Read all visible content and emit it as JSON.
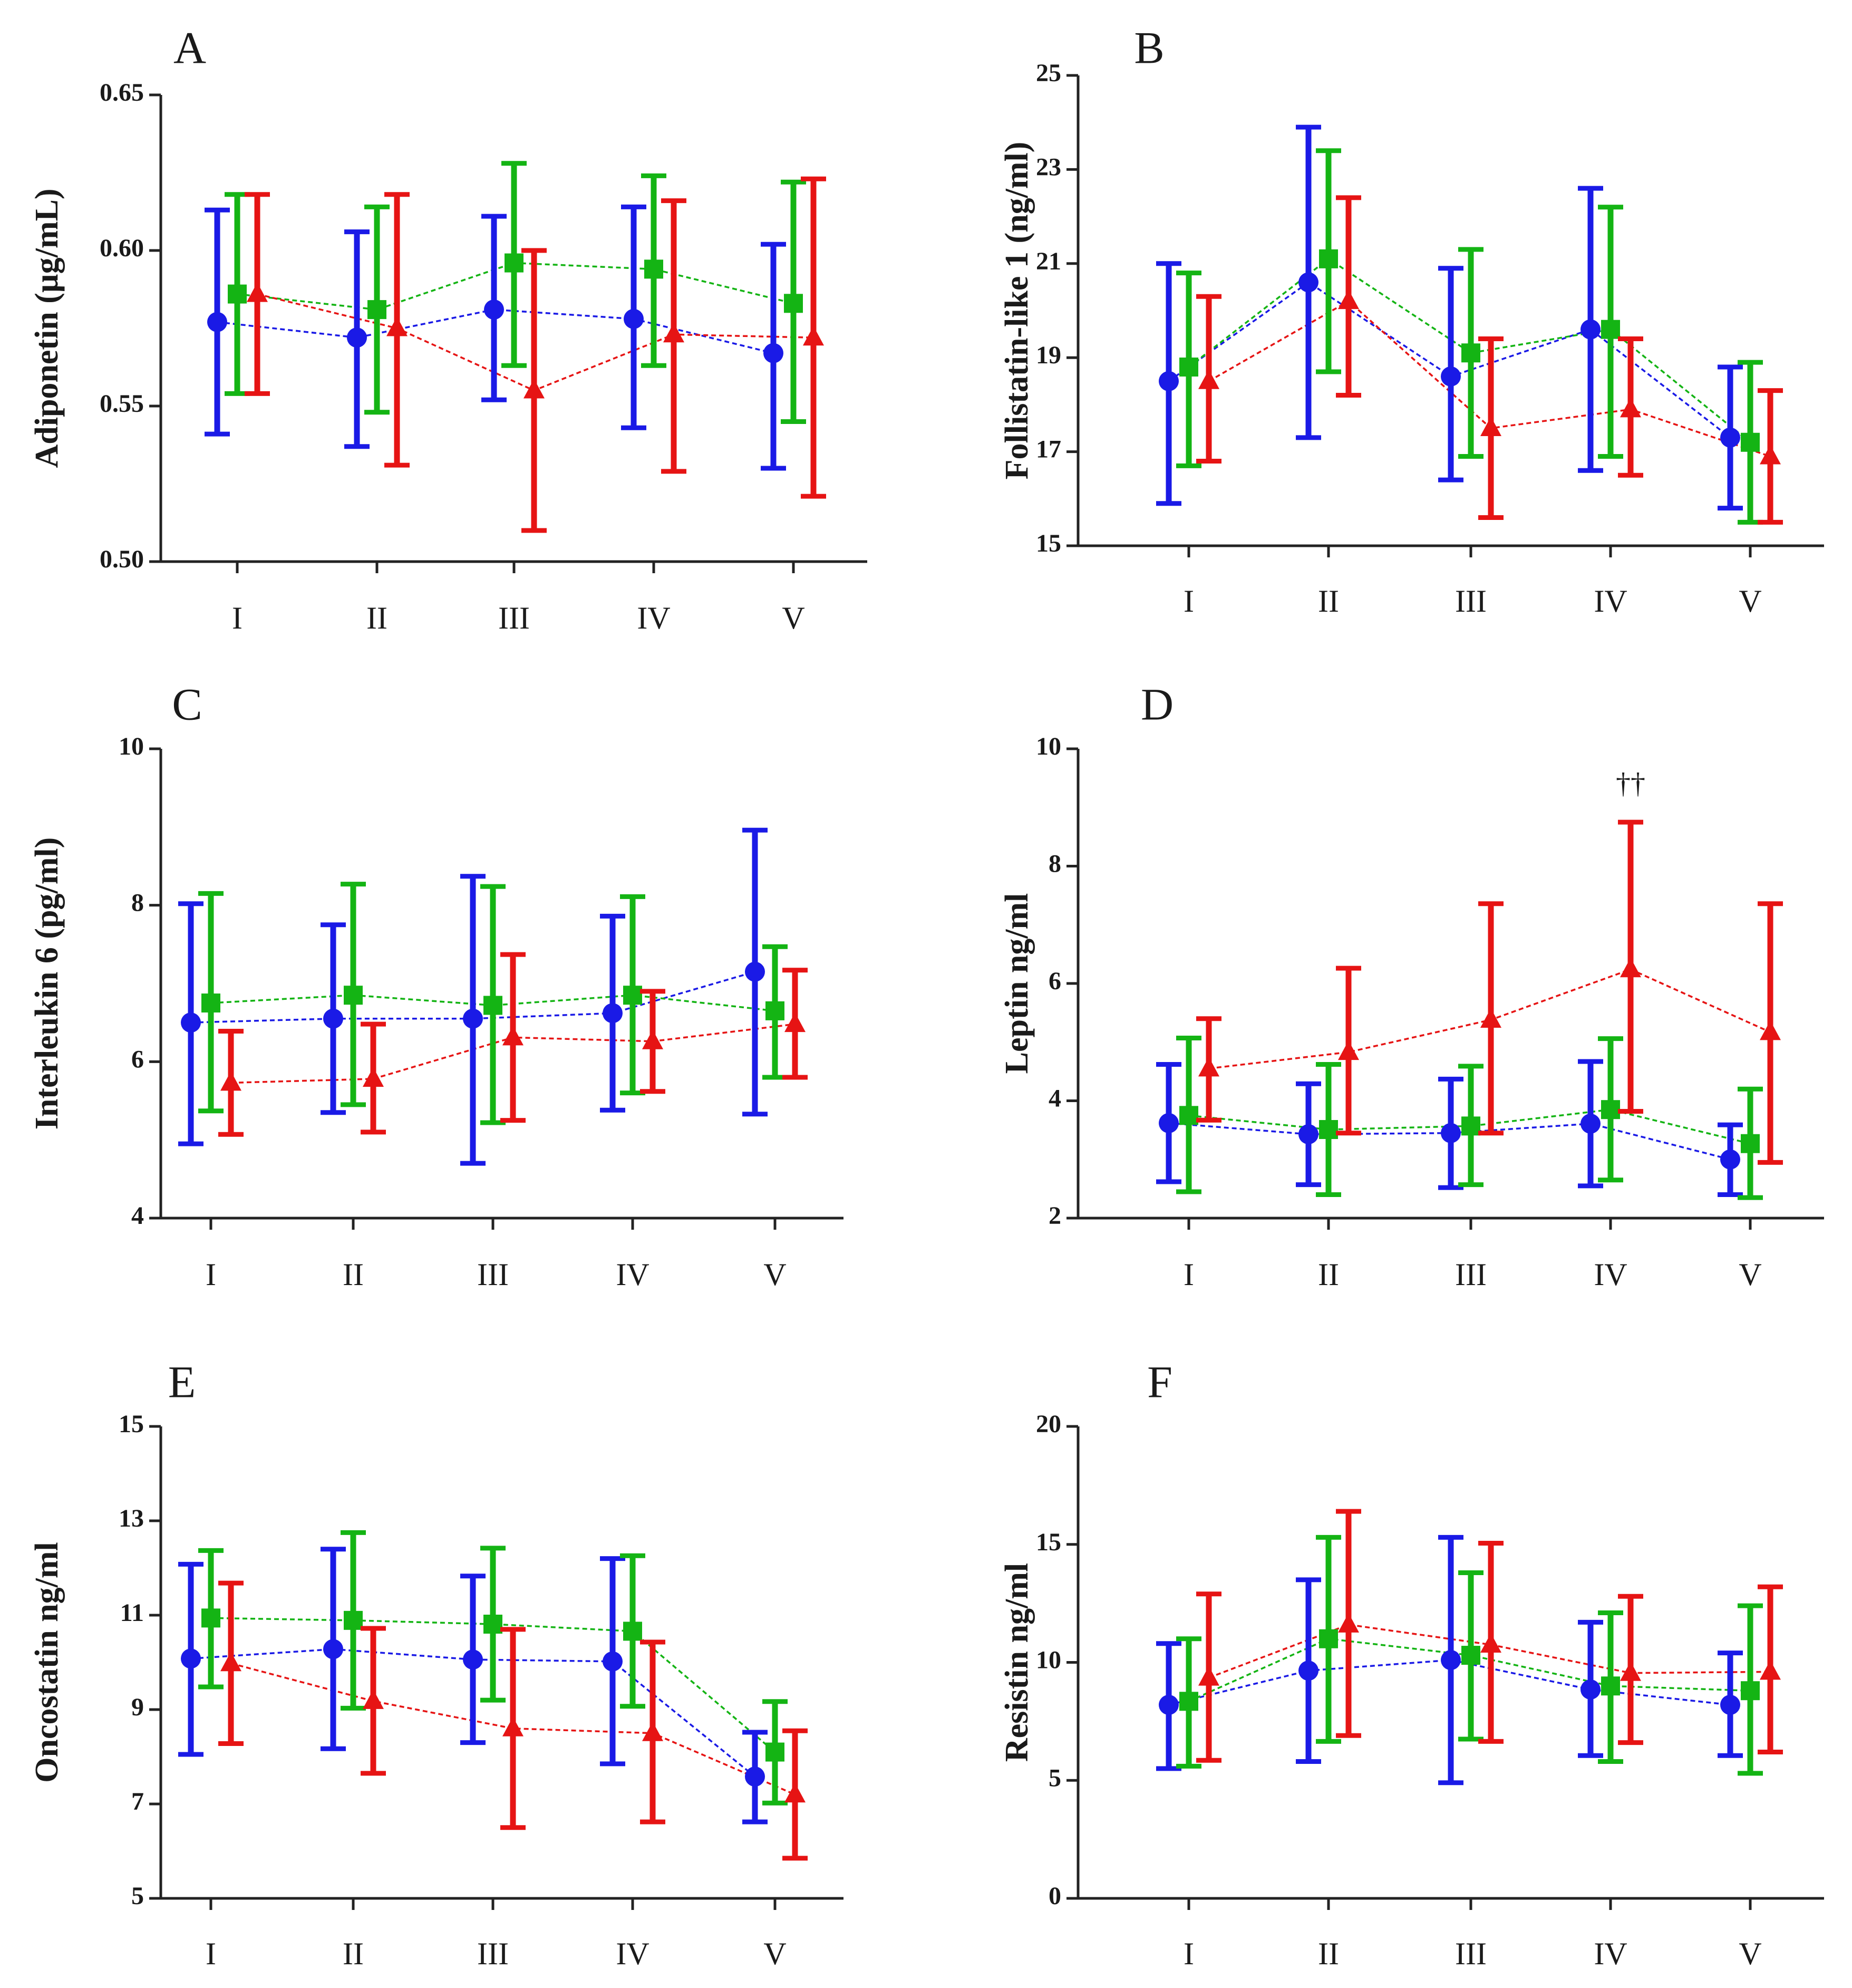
{
  "figure": {
    "series_legend": [
      {
        "name": "blue series",
        "marker": "circle"
      },
      {
        "name": "green series",
        "marker": "square"
      },
      {
        "name": "red series",
        "marker": "triangle"
      }
    ]
  },
  "chart_data": [
    {
      "panel": "A",
      "type": "line",
      "ylabel": "Adiponetin (µg/mL)",
      "categories": [
        "I",
        "II",
        "III",
        "IV",
        "V"
      ],
      "ylim": [
        0.5,
        0.65
      ],
      "yticks": [
        "0.50",
        "0.55",
        "0.60",
        "0.65"
      ],
      "series": [
        {
          "name": "blue",
          "color": "#1a1ae6",
          "marker": "circle",
          "values": [
            0.577,
            0.572,
            0.581,
            0.578,
            0.567
          ],
          "err_low": [
            0.541,
            0.537,
            0.552,
            0.543,
            0.53
          ],
          "err_high": [
            0.613,
            0.606,
            0.611,
            0.614,
            0.602
          ]
        },
        {
          "name": "green",
          "color": "#14b414",
          "marker": "square",
          "values": [
            0.586,
            0.581,
            0.596,
            0.594,
            0.583
          ],
          "err_low": [
            0.554,
            0.548,
            0.563,
            0.563,
            0.545
          ],
          "err_high": [
            0.618,
            0.614,
            0.628,
            0.624,
            0.622
          ]
        },
        {
          "name": "red",
          "color": "#e61414",
          "marker": "triangle",
          "values": [
            0.586,
            0.575,
            0.555,
            0.573,
            0.572
          ],
          "err_low": [
            0.554,
            0.531,
            0.51,
            0.529,
            0.521
          ],
          "err_high": [
            0.618,
            0.618,
            0.6,
            0.616,
            0.623
          ]
        }
      ]
    },
    {
      "panel": "B",
      "type": "line",
      "ylabel": "Follistatin-like 1 (ng/ml)",
      "categories": [
        "I",
        "II",
        "III",
        "IV",
        "V"
      ],
      "ylim": [
        15,
        25
      ],
      "yticks": [
        "15",
        "17",
        "19",
        "21",
        "23",
        "25"
      ],
      "series": [
        {
          "name": "blue",
          "color": "#1a1ae6",
          "marker": "circle",
          "values": [
            18.5,
            20.6,
            18.6,
            19.6,
            17.3
          ],
          "err_low": [
            15.9,
            17.3,
            16.4,
            16.6,
            15.8
          ],
          "err_high": [
            21.0,
            23.9,
            20.9,
            22.6,
            18.8
          ]
        },
        {
          "name": "green",
          "color": "#14b414",
          "marker": "square",
          "values": [
            18.8,
            21.1,
            19.1,
            19.6,
            17.2
          ],
          "err_low": [
            16.7,
            18.7,
            16.9,
            16.9,
            15.5
          ],
          "err_high": [
            20.8,
            23.4,
            21.3,
            22.2,
            18.9
          ]
        },
        {
          "name": "red",
          "color": "#e61414",
          "marker": "triangle",
          "values": [
            18.5,
            20.2,
            17.5,
            17.9,
            16.9
          ],
          "err_low": [
            16.8,
            18.2,
            15.6,
            16.5,
            15.5
          ],
          "err_high": [
            20.3,
            22.4,
            19.4,
            19.4,
            18.3
          ]
        }
      ]
    },
    {
      "panel": "C",
      "type": "line",
      "ylabel": "Interleukin 6 (pg/ml)",
      "categories": [
        "I",
        "II",
        "III",
        "IV",
        "V"
      ],
      "ylim": [
        4,
        10
      ],
      "yticks": [
        "4",
        "6",
        "8",
        "10"
      ],
      "series": [
        {
          "name": "blue",
          "color": "#1a1ae6",
          "marker": "circle",
          "values": [
            6.5,
            6.55,
            6.55,
            6.62,
            7.15
          ],
          "err_low": [
            4.95,
            5.35,
            4.7,
            5.38,
            5.33
          ],
          "err_high": [
            8.02,
            7.75,
            8.37,
            7.86,
            8.96
          ]
        },
        {
          "name": "green",
          "color": "#14b414",
          "marker": "square",
          "values": [
            6.75,
            6.85,
            6.72,
            6.85,
            6.65
          ],
          "err_low": [
            5.37,
            5.45,
            5.22,
            5.6,
            5.8
          ],
          "err_high": [
            8.15,
            8.27,
            8.24,
            8.11,
            7.47
          ]
        },
        {
          "name": "red",
          "color": "#e61414",
          "marker": "triangle",
          "values": [
            5.73,
            5.78,
            6.31,
            6.26,
            6.48
          ],
          "err_low": [
            5.07,
            5.1,
            5.25,
            5.62,
            5.8
          ],
          "err_high": [
            6.39,
            6.48,
            7.37,
            6.9,
            7.17
          ]
        }
      ]
    },
    {
      "panel": "D",
      "type": "line",
      "ylabel": "Leptin ng/ml",
      "categories": [
        "I",
        "II",
        "III",
        "IV",
        "V"
      ],
      "ylim": [
        2,
        10
      ],
      "yticks": [
        "2",
        "4",
        "6",
        "8",
        "10"
      ],
      "annotation": {
        "text": "††",
        "category": "IV",
        "series": "red"
      },
      "series": [
        {
          "name": "blue",
          "color": "#1a1ae6",
          "marker": "circle",
          "values": [
            3.62,
            3.43,
            3.45,
            3.61,
            3.0
          ],
          "err_low": [
            2.62,
            2.57,
            2.52,
            2.55,
            2.4
          ],
          "err_high": [
            4.62,
            4.29,
            4.37,
            4.67,
            3.59
          ]
        },
        {
          "name": "green",
          "color": "#14b414",
          "marker": "square",
          "values": [
            3.75,
            3.51,
            3.57,
            3.85,
            3.27
          ],
          "err_low": [
            2.45,
            2.4,
            2.57,
            2.65,
            2.35
          ],
          "err_high": [
            5.07,
            4.62,
            4.59,
            5.06,
            4.2
          ]
        },
        {
          "name": "red",
          "color": "#e61414",
          "marker": "triangle",
          "values": [
            4.55,
            4.83,
            5.38,
            6.24,
            5.17
          ],
          "err_low": [
            3.67,
            3.45,
            3.45,
            3.82,
            2.95
          ],
          "err_high": [
            5.4,
            6.26,
            7.36,
            8.75,
            7.36
          ]
        }
      ]
    },
    {
      "panel": "E",
      "type": "line",
      "ylabel": "Oncostatin ng/ml",
      "categories": [
        "I",
        "II",
        "III",
        "IV",
        "V"
      ],
      "ylim": [
        5,
        15
      ],
      "yticks": [
        "5",
        "7",
        "9",
        "11",
        "13",
        "15"
      ],
      "series": [
        {
          "name": "blue",
          "color": "#1a1ae6",
          "marker": "circle",
          "values": [
            10.08,
            10.28,
            10.06,
            10.02,
            7.58
          ],
          "err_low": [
            8.05,
            8.17,
            8.3,
            7.85,
            6.62
          ],
          "err_high": [
            12.08,
            12.4,
            11.83,
            12.2,
            8.52
          ]
        },
        {
          "name": "green",
          "color": "#14b414",
          "marker": "square",
          "values": [
            10.94,
            10.89,
            10.81,
            10.66,
            8.1
          ],
          "err_low": [
            9.48,
            9.03,
            9.2,
            9.07,
            7.02
          ],
          "err_high": [
            12.37,
            12.75,
            12.42,
            12.26,
            9.17
          ]
        },
        {
          "name": "red",
          "color": "#e61414",
          "marker": "triangle",
          "values": [
            9.98,
            9.18,
            8.6,
            8.5,
            7.2
          ],
          "err_low": [
            8.28,
            7.65,
            6.5,
            6.62,
            5.85
          ],
          "err_high": [
            11.68,
            10.72,
            10.7,
            10.43,
            8.55
          ]
        }
      ]
    },
    {
      "panel": "F",
      "type": "line",
      "ylabel": "Resistin ng/ml",
      "categories": [
        "I",
        "II",
        "III",
        "IV",
        "V"
      ],
      "ylim": [
        0,
        20
      ],
      "yticks": [
        "0",
        "5",
        "10",
        "15",
        "20"
      ],
      "series": [
        {
          "name": "blue",
          "color": "#1a1ae6",
          "marker": "circle",
          "values": [
            8.2,
            9.65,
            10.1,
            8.85,
            8.2
          ],
          "err_low": [
            5.5,
            5.8,
            4.9,
            6.05,
            6.05
          ],
          "err_high": [
            10.8,
            13.5,
            15.3,
            11.7,
            10.4
          ]
        },
        {
          "name": "green",
          "color": "#14b414",
          "marker": "square",
          "values": [
            8.35,
            11.0,
            10.3,
            9.0,
            8.8
          ],
          "err_low": [
            5.6,
            6.65,
            6.75,
            5.8,
            5.3
          ],
          "err_high": [
            11.0,
            15.3,
            13.8,
            12.1,
            12.4
          ]
        },
        {
          "name": "red",
          "color": "#e61414",
          "marker": "triangle",
          "values": [
            9.35,
            11.6,
            10.75,
            9.55,
            9.6
          ],
          "err_low": [
            5.85,
            6.9,
            6.65,
            6.6,
            6.2
          ],
          "err_high": [
            12.9,
            16.4,
            15.05,
            12.8,
            13.2
          ]
        }
      ]
    }
  ]
}
